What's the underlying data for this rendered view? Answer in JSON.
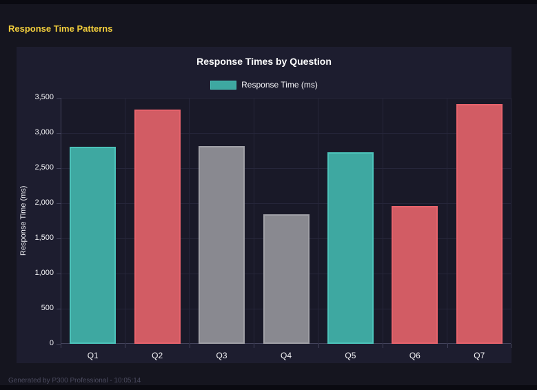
{
  "window": {
    "heading": "Response Time Patterns",
    "footer": "Generated by P300 Professional - 10:05:14"
  },
  "colors": {
    "page_bg": "#15151F",
    "edge_strip": "#0A0A11",
    "card_bg": "#1D1D2F",
    "plot_bg": "#191928",
    "grid": "#26263A",
    "axis": "#44445C",
    "heading_text": "#F2CE3C",
    "title_text": "#FFFFFF",
    "tick_text": "#F2F2F5",
    "footer_text": "#4C4C60",
    "series_colors": {
      "teal": {
        "fill": "#3EA8A1",
        "border": "#4CC3BA"
      },
      "red": {
        "fill": "#D25C64",
        "border": "#E7636C"
      },
      "gray": {
        "fill": "#898990",
        "border": "#A0A0A6"
      }
    }
  },
  "chart_data": {
    "type": "bar",
    "title": "Response Times by Question",
    "legend": [
      {
        "label": "Response Time (ms)",
        "color": "teal"
      }
    ],
    "legend_position": "top",
    "categories": [
      "Q1",
      "Q2",
      "Q3",
      "Q4",
      "Q5",
      "Q6",
      "Q7"
    ],
    "values": [
      2800,
      3330,
      2810,
      1840,
      2730,
      1960,
      3410
    ],
    "bar_colors": [
      "teal",
      "red",
      "gray",
      "gray",
      "teal",
      "red",
      "red"
    ],
    "xlabel": "",
    "ylabel": "Response Time (ms)",
    "ylim": [
      0,
      3500
    ],
    "ytick_step": 500,
    "grid": true
  }
}
